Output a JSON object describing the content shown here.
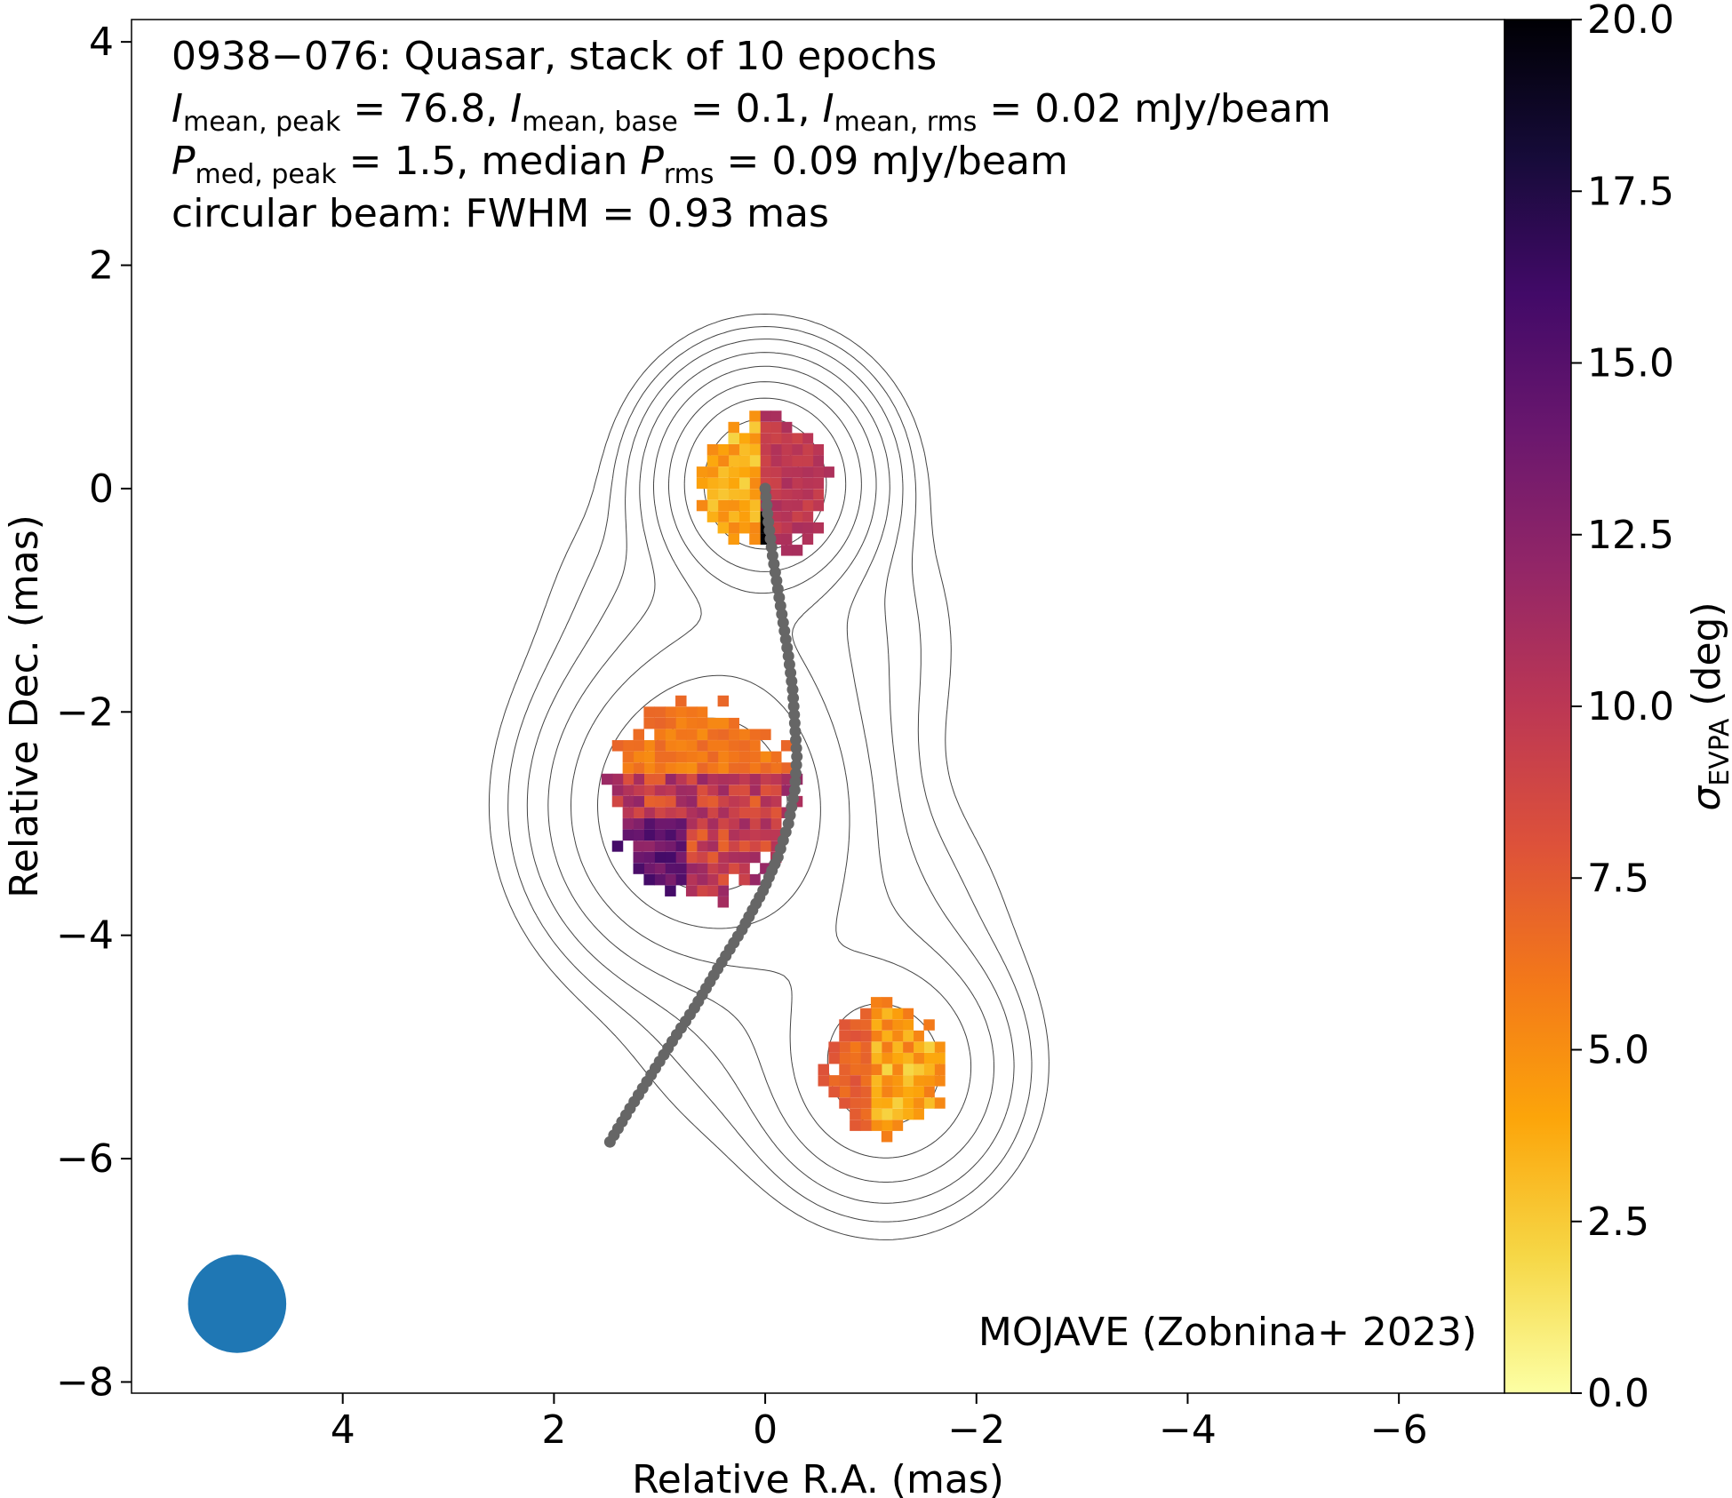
{
  "chart_data": {
    "type": "heatmap",
    "annotation_lines": [
      {
        "parts": [
          {
            "t": "0938−076: Quasar, stack of 10 epochs"
          }
        ]
      },
      {
        "parts": [
          {
            "t": "I",
            "i": true
          },
          {
            "t": "mean, peak",
            "sub": true
          },
          {
            "t": " = 76.8, "
          },
          {
            "t": "I",
            "i": true
          },
          {
            "t": "mean, base",
            "sub": true
          },
          {
            "t": " = 0.1, "
          },
          {
            "t": "I",
            "i": true
          },
          {
            "t": "mean, rms",
            "sub": true
          },
          {
            "t": " = 0.02 mJy/beam"
          }
        ]
      },
      {
        "parts": [
          {
            "t": "P",
            "i": true
          },
          {
            "t": "med, peak",
            "sub": true
          },
          {
            "t": " = 1.5, median "
          },
          {
            "t": "P",
            "i": true
          },
          {
            "t": "rms",
            "sub": true
          },
          {
            "t": " = 0.09 mJy/beam"
          }
        ]
      },
      {
        "parts": [
          {
            "t": "circular beam: FWHM = 0.93 mas"
          }
        ]
      }
    ],
    "credit": "MOJAVE (Zobnina+ 2023)",
    "xlabel": "Relative R.A. (mas)",
    "ylabel": "Relative Dec. (mas)",
    "xlim": [
      6.0,
      -7.0
    ],
    "ylim": [
      -8.1,
      4.2
    ],
    "x_ticks": [
      4,
      2,
      0,
      -2,
      -4,
      -6
    ],
    "y_ticks": [
      4,
      2,
      0,
      -2,
      -4,
      -6,
      -8
    ],
    "colorbar": {
      "label_symbol": "σ",
      "label_sub": "EVPA",
      "label_rest": " (deg)",
      "range": [
        0,
        20
      ],
      "ticks": [
        0.0,
        2.5,
        5.0,
        7.5,
        10.0,
        12.5,
        15.0,
        17.5,
        20.0
      ],
      "colormap": "inferno_r",
      "stops": [
        "#fcffa4",
        "#f6d746",
        "#fca50a",
        "#f37819",
        "#dd513a",
        "#bc3754",
        "#932667",
        "#6a176e",
        "#420a68",
        "#160b39",
        "#000004"
      ]
    },
    "beam": {
      "x": 5.0,
      "y": -7.3,
      "fwhm": 0.93,
      "color": "#1f77b4"
    },
    "ridgeline": {
      "color": "#666666",
      "points": [
        [
          0.0,
          0.0
        ],
        [
          -0.03,
          -0.3
        ],
        [
          -0.07,
          -0.6
        ],
        [
          -0.12,
          -0.9
        ],
        [
          -0.17,
          -1.2
        ],
        [
          -0.22,
          -1.5
        ],
        [
          -0.26,
          -1.8
        ],
        [
          -0.28,
          -2.1
        ],
        [
          -0.3,
          -2.4
        ],
        [
          -0.28,
          -2.7
        ],
        [
          -0.22,
          -3.0
        ],
        [
          -0.12,
          -3.3
        ],
        [
          0.02,
          -3.6
        ],
        [
          0.22,
          -3.95
        ],
        [
          0.45,
          -4.3
        ],
        [
          0.67,
          -4.65
        ],
        [
          0.88,
          -4.95
        ],
        [
          1.08,
          -5.25
        ],
        [
          1.28,
          -5.55
        ],
        [
          1.47,
          -5.85
        ]
      ]
    },
    "components": [
      {
        "x": 0.0,
        "y": 0.05,
        "r": 0.6,
        "sigma_evpa_deg": 9.5
      },
      {
        "x": 0.6,
        "y": -2.8,
        "r": 0.85,
        "sigma_evpa_deg": 10.5
      },
      {
        "x": -1.15,
        "y": -5.2,
        "r": 0.55,
        "sigma_evpa_deg": 4.5
      }
    ]
  }
}
